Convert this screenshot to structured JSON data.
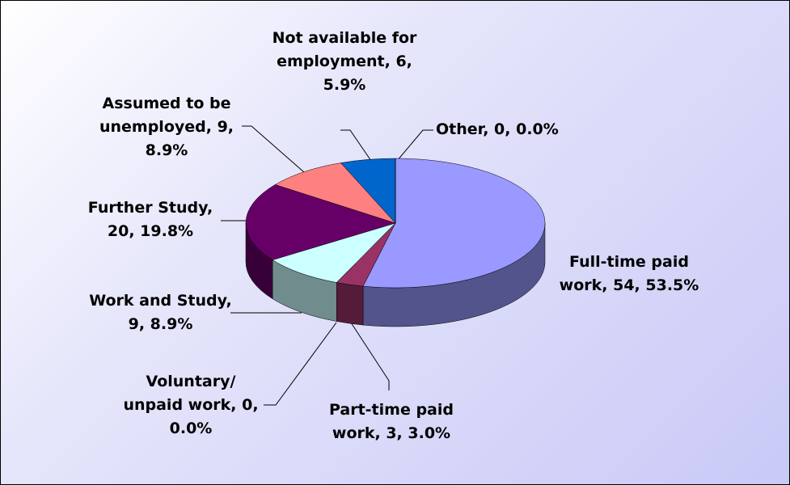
{
  "chart_data": {
    "type": "pie",
    "categories": [
      "Full-time paid work, 54, 53.5%",
      "Part-time paid work, 3, 3.0%",
      "Voluntary/ unpaid work, 0, 0.0%",
      "Work and Study, 9, 8.9%",
      "Further Study, 20, 19.8%",
      "Assumed to be unemployed, 9, 8.9%",
      "Not available for employment, 6, 5.9%",
      "Other, 0, 0.0%"
    ],
    "values": [
      54,
      3,
      0,
      9,
      20,
      9,
      6,
      0
    ],
    "colors": [
      "#9999ff",
      "#993366",
      "#ffffcc",
      "#ccffff",
      "#660066",
      "#ff8080",
      "#0066cc",
      "#ccccff"
    ]
  }
}
